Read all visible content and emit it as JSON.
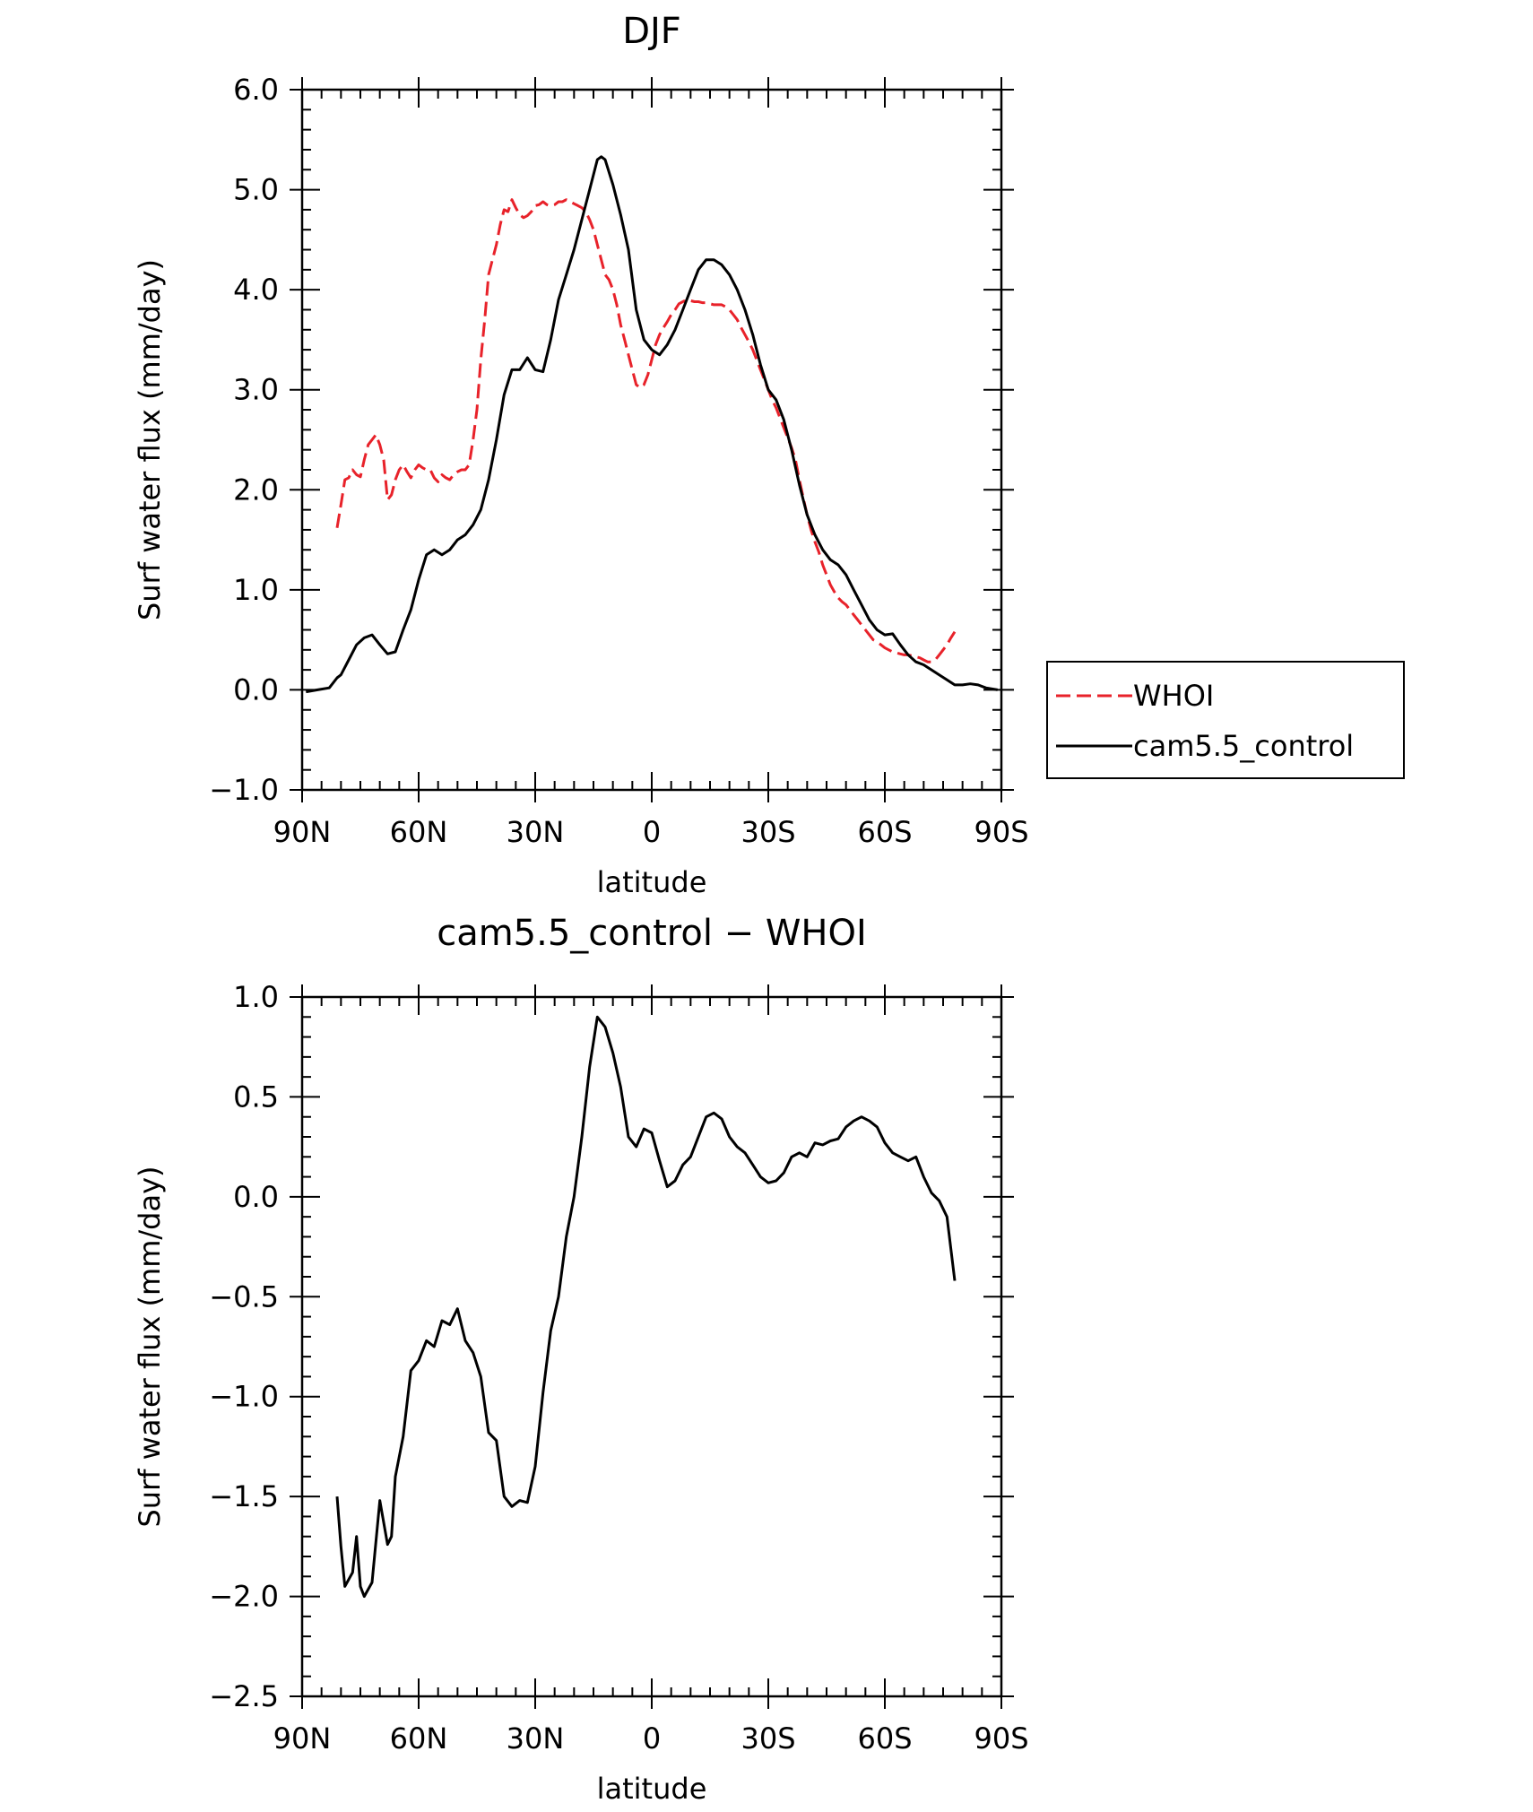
{
  "chart_data": [
    {
      "type": "line",
      "title": "DJF",
      "xlabel": "latitude",
      "ylabel": "Surf water flux (mm/day)",
      "xlim": [
        90,
        -90
      ],
      "ylim": [
        -1.0,
        6.0
      ],
      "xticks": [
        90,
        60,
        30,
        0,
        -30,
        -60,
        -90
      ],
      "xticklabels": [
        "90N",
        "60N",
        "30N",
        "0",
        "30S",
        "60S",
        "90S"
      ],
      "yticks": [
        -1.0,
        0.0,
        1.0,
        2.0,
        3.0,
        4.0,
        5.0,
        6.0
      ],
      "yticklabels": [
        "−1.0",
        "0.0",
        "1.0",
        "2.0",
        "3.0",
        "4.0",
        "5.0",
        "6.0"
      ],
      "legend_position": "right",
      "series": [
        {
          "name": "WHOI",
          "color": "#e8222a",
          "dash": "dashed",
          "x": [
            81,
            80,
            79,
            78,
            77,
            76,
            75,
            74,
            73,
            72,
            71,
            70,
            69,
            68,
            67,
            66,
            65,
            64,
            63,
            62,
            61,
            60,
            59,
            58,
            57,
            56,
            55,
            54,
            53,
            52,
            51,
            50,
            49,
            48,
            47,
            46,
            45,
            44,
            43,
            42,
            41,
            40,
            39,
            38,
            37,
            36,
            35,
            34,
            33,
            32,
            31,
            30,
            29,
            28,
            27,
            26,
            25,
            24,
            23,
            22,
            21,
            20,
            19,
            18,
            17,
            16,
            15,
            14,
            13,
            12,
            11,
            10,
            9,
            8,
            7,
            6,
            5,
            4,
            3,
            2,
            1,
            0,
            -1,
            -2,
            -3,
            -4,
            -5,
            -6,
            -7,
            -8,
            -9,
            -10,
            -11,
            -12,
            -13,
            -14,
            -15,
            -16,
            -17,
            -18,
            -19,
            -20,
            -21,
            -22,
            -23,
            -24,
            -25,
            -26,
            -27,
            -28,
            -29,
            -30,
            -31,
            -32,
            -33,
            -34,
            -35,
            -36,
            -37,
            -38,
            -39,
            -40,
            -41,
            -42,
            -43,
            -44,
            -45,
            -46,
            -47,
            -48,
            -49,
            -50,
            -51,
            -52,
            -53,
            -54,
            -55,
            -56,
            -57,
            -58,
            -59,
            -60,
            -61,
            -62,
            -63,
            -64,
            -65,
            -66,
            -67,
            -68,
            -69,
            -70,
            -71,
            -72,
            -73,
            -74,
            -75,
            -76,
            -77,
            -78
          ],
          "y": [
            1.62,
            1.85,
            2.1,
            2.12,
            2.2,
            2.15,
            2.13,
            2.3,
            2.45,
            2.5,
            2.55,
            2.45,
            2.3,
            1.9,
            1.95,
            2.1,
            2.2,
            2.25,
            2.18,
            2.12,
            2.2,
            2.25,
            2.22,
            2.2,
            2.2,
            2.12,
            2.08,
            2.15,
            2.12,
            2.1,
            2.15,
            2.18,
            2.2,
            2.2,
            2.25,
            2.5,
            2.8,
            3.3,
            3.7,
            4.15,
            4.3,
            4.45,
            4.65,
            4.8,
            4.78,
            4.9,
            4.82,
            4.75,
            4.72,
            4.74,
            4.78,
            4.84,
            4.85,
            4.88,
            4.85,
            4.84,
            4.85,
            4.88,
            4.88,
            4.9,
            4.88,
            4.86,
            4.84,
            4.82,
            4.78,
            4.7,
            4.6,
            4.45,
            4.3,
            4.15,
            4.1,
            4.0,
            3.85,
            3.65,
            3.5,
            3.35,
            3.2,
            3.05,
            3.02,
            3.05,
            3.15,
            3.3,
            3.45,
            3.55,
            3.62,
            3.68,
            3.75,
            3.8,
            3.86,
            3.88,
            3.9,
            3.89,
            3.88,
            3.88,
            3.87,
            3.87,
            3.86,
            3.85,
            3.85,
            3.85,
            3.83,
            3.8,
            3.75,
            3.7,
            3.62,
            3.55,
            3.48,
            3.4,
            3.3,
            3.2,
            3.1,
            3.0,
            2.9,
            2.82,
            2.72,
            2.62,
            2.52,
            2.42,
            2.3,
            2.1,
            1.92,
            1.75,
            1.6,
            1.48,
            1.38,
            1.25,
            1.15,
            1.05,
            0.98,
            0.92,
            0.88,
            0.85,
            0.8,
            0.75,
            0.7,
            0.65,
            0.6,
            0.55,
            0.5,
            0.48,
            0.45,
            0.42,
            0.4,
            0.38,
            0.37,
            0.36,
            0.35,
            0.35,
            0.34,
            0.33,
            0.32,
            0.3,
            0.28,
            0.28,
            0.3,
            0.35,
            0.4,
            0.45,
            0.52,
            0.58
          ]
        },
        {
          "name": "cam5.5_control",
          "color": "#000000",
          "dash": "solid",
          "x": [
            89,
            86,
            83,
            81,
            80,
            78,
            76,
            74,
            72,
            70,
            68,
            66,
            64,
            62,
            60,
            58,
            56,
            54,
            52,
            50,
            48,
            46,
            44,
            42,
            40,
            38,
            36,
            34,
            32,
            30,
            28,
            26,
            24,
            22,
            20,
            18,
            16,
            14,
            13,
            12,
            10,
            8,
            6,
            4,
            2,
            0,
            -2,
            -4,
            -6,
            -8,
            -10,
            -12,
            -14,
            -16,
            -18,
            -20,
            -22,
            -24,
            -26,
            -28,
            -30,
            -32,
            -34,
            -36,
            -38,
            -40,
            -42,
            -44,
            -46,
            -48,
            -50,
            -52,
            -54,
            -56,
            -58,
            -60,
            -62,
            -64,
            -66,
            -68,
            -70,
            -72,
            -74,
            -76,
            -78,
            -80,
            -82,
            -84,
            -86,
            -89
          ],
          "y": [
            -0.02,
            0.0,
            0.02,
            0.12,
            0.15,
            0.3,
            0.45,
            0.52,
            0.55,
            0.45,
            0.36,
            0.38,
            0.6,
            0.8,
            1.1,
            1.35,
            1.4,
            1.35,
            1.4,
            1.5,
            1.55,
            1.65,
            1.8,
            2.1,
            2.5,
            2.95,
            3.2,
            3.2,
            3.32,
            3.2,
            3.18,
            3.5,
            3.9,
            4.15,
            4.4,
            4.7,
            5.0,
            5.3,
            5.33,
            5.3,
            5.05,
            4.75,
            4.4,
            3.8,
            3.5,
            3.4,
            3.35,
            3.45,
            3.6,
            3.8,
            4.0,
            4.2,
            4.3,
            4.3,
            4.25,
            4.15,
            4.0,
            3.8,
            3.55,
            3.25,
            3.0,
            2.9,
            2.7,
            2.4,
            2.05,
            1.75,
            1.55,
            1.4,
            1.3,
            1.25,
            1.15,
            1.0,
            0.85,
            0.7,
            0.6,
            0.55,
            0.56,
            0.45,
            0.35,
            0.28,
            0.25,
            0.2,
            0.15,
            0.1,
            0.05,
            0.05,
            0.06,
            0.05,
            0.02,
            0.0
          ]
        }
      ]
    },
    {
      "type": "line",
      "title": "cam5.5_control − WHOI",
      "xlabel": "latitude",
      "ylabel": "Surf water flux (mm/day)",
      "xlim": [
        90,
        -90
      ],
      "ylim": [
        -2.5,
        1.0
      ],
      "xticks": [
        90,
        60,
        30,
        0,
        -30,
        -60,
        -90
      ],
      "xticklabels": [
        "90N",
        "60N",
        "30N",
        "0",
        "30S",
        "60S",
        "90S"
      ],
      "yticks": [
        -2.5,
        -2.0,
        -1.5,
        -1.0,
        -0.5,
        0.0,
        0.5,
        1.0
      ],
      "yticklabels": [
        "−2.5",
        "−2.0",
        "−1.5",
        "−1.0",
        "−0.5",
        "0.0",
        "0.5",
        "1.0"
      ],
      "series": [
        {
          "name": "cam5.5_control − WHOI",
          "color": "#000000",
          "dash": "solid",
          "x": [
            81,
            80,
            79,
            77,
            76,
            75,
            74,
            72,
            70,
            68,
            67,
            66,
            64,
            62,
            60,
            58,
            56,
            54,
            52,
            50,
            48,
            46,
            44,
            42,
            40,
            38,
            36,
            34,
            32,
            30,
            28,
            26,
            24,
            22,
            20,
            18,
            16,
            14,
            12,
            10,
            8,
            6,
            4,
            2,
            0,
            -2,
            -4,
            -6,
            -8,
            -10,
            -12,
            -14,
            -16,
            -18,
            -20,
            -22,
            -24,
            -26,
            -28,
            -30,
            -32,
            -34,
            -36,
            -38,
            -40,
            -42,
            -44,
            -46,
            -48,
            -50,
            -52,
            -54,
            -56,
            -58,
            -60,
            -62,
            -64,
            -66,
            -68,
            -70,
            -72,
            -74,
            -76,
            -78
          ],
          "y": [
            -1.5,
            -1.75,
            -1.95,
            -1.88,
            -1.7,
            -1.95,
            -2.0,
            -1.93,
            -1.52,
            -1.74,
            -1.7,
            -1.4,
            -1.2,
            -0.87,
            -0.82,
            -0.72,
            -0.75,
            -0.62,
            -0.64,
            -0.56,
            -0.72,
            -0.78,
            -0.9,
            -1.18,
            -1.22,
            -1.5,
            -1.55,
            -1.52,
            -1.53,
            -1.35,
            -0.98,
            -0.67,
            -0.5,
            -0.2,
            0.0,
            0.3,
            0.65,
            0.9,
            0.85,
            0.72,
            0.55,
            0.3,
            0.25,
            0.34,
            0.32,
            0.18,
            0.05,
            0.08,
            0.16,
            0.2,
            0.3,
            0.4,
            0.42,
            0.39,
            0.3,
            0.25,
            0.22,
            0.16,
            0.1,
            0.07,
            0.08,
            0.12,
            0.2,
            0.22,
            0.2,
            0.27,
            0.26,
            0.28,
            0.29,
            0.35,
            0.38,
            0.4,
            0.38,
            0.35,
            0.27,
            0.22,
            0.2,
            0.18,
            0.2,
            0.1,
            0.02,
            -0.02,
            -0.1,
            -0.42
          ]
        }
      ]
    }
  ]
}
